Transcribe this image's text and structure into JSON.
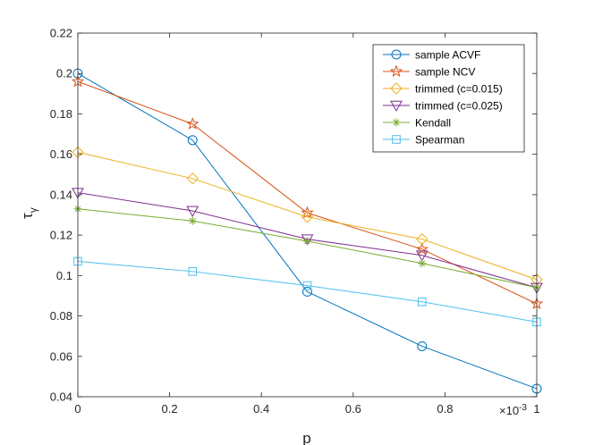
{
  "chart_data": {
    "type": "line",
    "xlabel": "p",
    "ylabel_base": "τ",
    "ylabel_sub": "γ",
    "xlim": [
      0,
      1
    ],
    "ylim": [
      0.04,
      0.22
    ],
    "x_exponent": {
      "base": "×10",
      "power": "-3"
    },
    "x_ticks": [
      0,
      0.2,
      0.4,
      0.6,
      0.8,
      1
    ],
    "x_tick_labels": [
      "0",
      "0.2",
      "0.4",
      "0.6",
      "0.8",
      "1"
    ],
    "y_ticks": [
      0.04,
      0.06,
      0.08,
      0.1,
      0.12,
      0.14,
      0.16,
      0.18,
      0.2,
      0.22
    ],
    "y_tick_labels": [
      "0.04",
      "0.06",
      "0.08",
      "0.1",
      "0.12",
      "0.14",
      "0.16",
      "0.18",
      "0.2",
      "0.22"
    ],
    "x": [
      0,
      0.25,
      0.5,
      0.75,
      1
    ],
    "legend_position": "top-right",
    "grid": false,
    "series": [
      {
        "name": "sample ACVF",
        "color": "#0072BD",
        "marker": "circle",
        "values": [
          0.2,
          0.167,
          0.092,
          0.065,
          0.044
        ]
      },
      {
        "name": "sample NCV",
        "color": "#D95319",
        "marker": "star",
        "values": [
          0.196,
          0.175,
          0.131,
          0.113,
          0.086
        ]
      },
      {
        "name": "trimmed (c=0.015)",
        "color": "#EDB120",
        "marker": "diamond",
        "values": [
          0.161,
          0.148,
          0.129,
          0.118,
          0.098
        ]
      },
      {
        "name": "trimmed (c=0.025)",
        "color": "#7E2F8E",
        "marker": "triangle-down",
        "values": [
          0.141,
          0.132,
          0.118,
          0.11,
          0.094
        ]
      },
      {
        "name": "Kendall",
        "color": "#77AC30",
        "marker": "asterisk",
        "values": [
          0.133,
          0.127,
          0.117,
          0.106,
          0.094
        ]
      },
      {
        "name": "Spearman",
        "color": "#4DBEEE",
        "marker": "square",
        "values": [
          0.107,
          0.102,
          0.095,
          0.087,
          0.077
        ]
      }
    ]
  }
}
